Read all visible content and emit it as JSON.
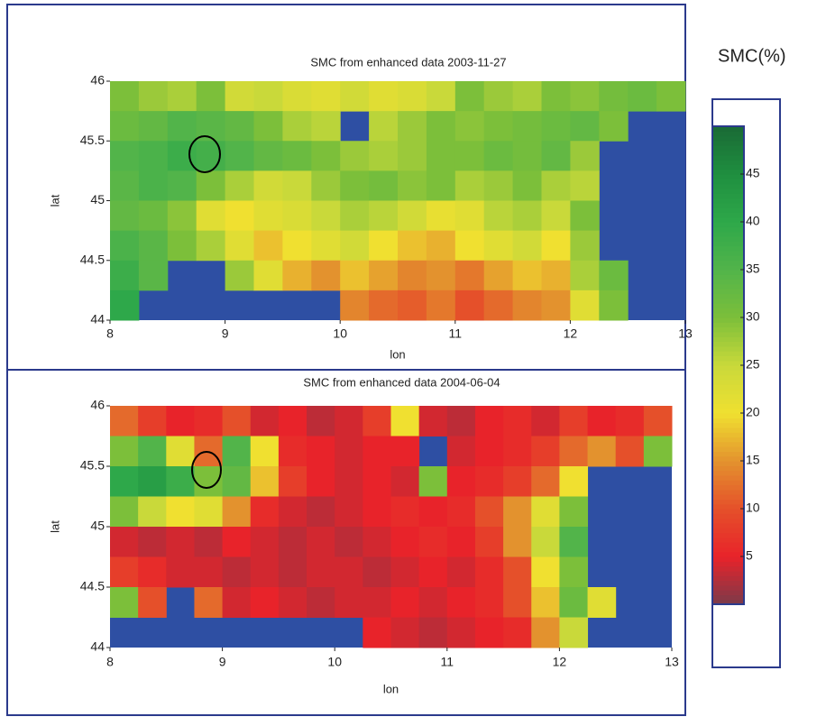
{
  "chart_data": [
    {
      "type": "heatmap",
      "title": "SMC from enhanced data 2003-11-27",
      "xlabel": "lon",
      "ylabel": "lat",
      "xlim": [
        8,
        13
      ],
      "ylim": [
        44,
        46
      ],
      "xticks": [
        8,
        9,
        10,
        11,
        12,
        13
      ],
      "yticks": [
        44,
        44.5,
        45,
        45.5,
        46
      ],
      "values": [
        [
          30,
          28,
          27,
          30,
          24,
          25,
          23,
          22,
          24,
          22,
          23,
          25,
          30,
          28,
          27,
          30,
          29,
          31,
          32,
          30
        ],
        [
          32,
          33,
          35,
          34,
          33,
          30,
          27,
          26,
          null,
          26,
          28,
          30,
          29,
          30,
          31,
          32,
          33,
          30,
          null,
          null
        ],
        [
          35,
          36,
          38,
          37,
          35,
          33,
          32,
          30,
          28,
          27,
          28,
          30,
          30,
          32,
          31,
          33,
          28,
          null,
          null,
          null
        ],
        [
          34,
          36,
          35,
          30,
          27,
          24,
          25,
          28,
          30,
          31,
          29,
          30,
          27,
          28,
          30,
          27,
          26,
          null,
          null,
          null
        ],
        [
          33,
          32,
          29,
          22,
          20,
          22,
          23,
          25,
          27,
          26,
          24,
          21,
          22,
          26,
          27,
          25,
          30,
          null,
          null,
          null
        ],
        [
          36,
          34,
          30,
          27,
          22,
          18,
          20,
          22,
          24,
          20,
          18,
          17,
          20,
          22,
          24,
          20,
          28,
          null,
          null,
          null
        ],
        [
          38,
          34,
          null,
          null,
          28,
          22,
          17,
          15,
          18,
          16,
          14,
          15,
          13,
          16,
          18,
          17,
          27,
          32,
          null,
          null
        ],
        [
          40,
          null,
          null,
          null,
          null,
          null,
          null,
          null,
          14,
          12,
          11,
          13,
          10,
          12,
          14,
          15,
          22,
          30,
          null,
          null
        ]
      ]
    },
    {
      "type": "heatmap",
      "title": "SMC from enhanced data 2004-06-04",
      "xlabel": "lon",
      "ylabel": "lat",
      "xlim": [
        8,
        13
      ],
      "ylim": [
        44,
        46
      ],
      "xticks": [
        8,
        9,
        10,
        11,
        12,
        13
      ],
      "yticks": [
        44,
        44.5,
        45,
        45.5,
        46
      ],
      "values": [
        [
          12,
          8,
          5,
          6,
          10,
          4,
          5,
          3,
          4,
          8,
          20,
          4,
          3,
          5,
          6,
          4,
          8,
          5,
          6,
          10
        ],
        [
          30,
          35,
          22,
          12,
          35,
          20,
          6,
          5,
          4,
          5,
          5,
          null,
          4,
          5,
          6,
          8,
          12,
          15,
          10,
          30
        ],
        [
          40,
          42,
          38,
          30,
          33,
          18,
          8,
          5,
          4,
          5,
          4,
          30,
          5,
          6,
          8,
          12,
          20,
          null,
          null,
          null
        ],
        [
          30,
          25,
          20,
          22,
          15,
          6,
          4,
          3,
          4,
          5,
          6,
          5,
          6,
          10,
          15,
          22,
          30,
          null,
          null,
          null
        ],
        [
          4,
          3,
          4,
          3,
          5,
          4,
          3,
          4,
          3,
          4,
          5,
          6,
          5,
          8,
          15,
          25,
          35,
          null,
          null,
          null
        ],
        [
          8,
          6,
          4,
          4,
          3,
          4,
          3,
          4,
          4,
          3,
          4,
          5,
          4,
          6,
          10,
          20,
          30,
          null,
          null,
          null
        ],
        [
          30,
          10,
          null,
          12,
          4,
          5,
          4,
          3,
          4,
          4,
          5,
          4,
          5,
          6,
          10,
          18,
          32,
          22,
          null,
          null
        ],
        [
          null,
          null,
          null,
          null,
          null,
          null,
          null,
          null,
          null,
          5,
          4,
          3,
          4,
          5,
          6,
          15,
          25,
          null,
          null,
          null
        ]
      ]
    }
  ],
  "colorbar": {
    "label": "SMC(%)",
    "clim": [
      0,
      50
    ],
    "ticks": [
      5,
      10,
      15,
      20,
      25,
      30,
      35,
      40,
      45
    ],
    "colormap": [
      "#7a3a4a",
      "#e8232a",
      "#e5502a",
      "#e3922e",
      "#f0e030",
      "#c9d93a",
      "#7cbf3a",
      "#52b44a",
      "#2ea84a",
      "#1f8f3f",
      "#1a6a36"
    ],
    "mask_color": "#2e4fa3"
  }
}
